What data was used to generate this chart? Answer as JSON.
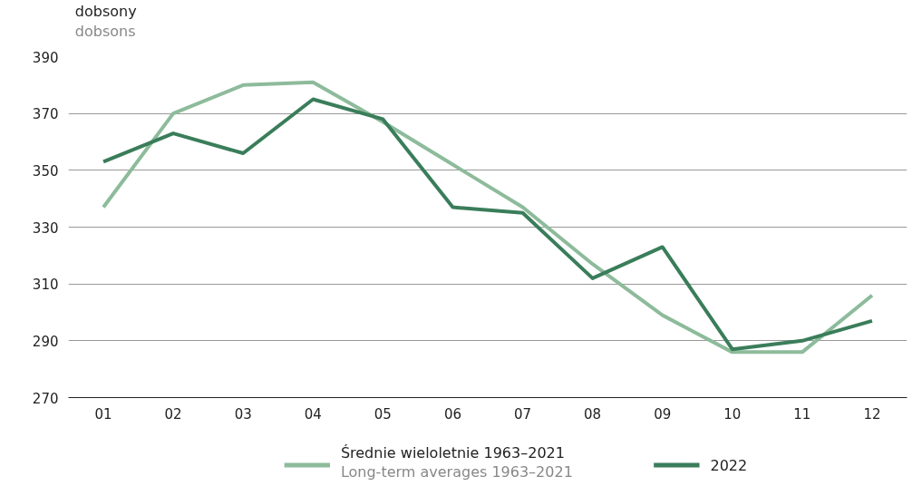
{
  "chart_data": {
    "type": "line",
    "ylabel": "dobsony\ndobsons",
    "categories": [
      "01",
      "02",
      "03",
      "04",
      "05",
      "06",
      "07",
      "08",
      "09",
      "10",
      "11",
      "12"
    ],
    "series": [
      {
        "name": "Średnie wieloletnie 1963–2021\nLong-term averages 1963–2021",
        "color": "#8dbb9b",
        "values": [
          337,
          370,
          380,
          381,
          367,
          352,
          337,
          317,
          299,
          286,
          286,
          306
        ]
      },
      {
        "name": "2022",
        "color": "#3a7d5a",
        "values": [
          353,
          363,
          356,
          375,
          368,
          337,
          335,
          312,
          323,
          287,
          290,
          297
        ]
      }
    ],
    "ylim": [
      270,
      390
    ],
    "yticks": [
      270,
      290,
      310,
      330,
      350,
      370,
      390
    ],
    "grid": "y",
    "legend": "bottom",
    "marker": "none",
    "line_style": "solid"
  }
}
